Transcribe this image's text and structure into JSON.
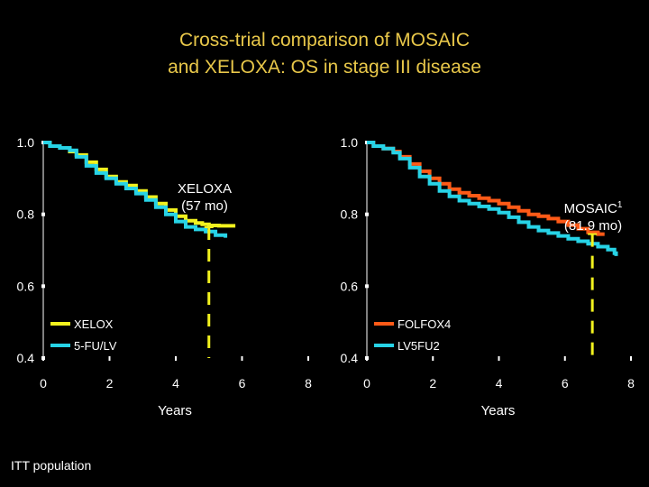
{
  "title": {
    "line1": "Cross-trial comparison of MOSAIC",
    "line2": "and XELOXA: OS in stage III disease"
  },
  "footnote": "ITT population",
  "colors": {
    "background": "#000000",
    "title": "#e9c84a",
    "xelox": "#f2f21e",
    "fu_lv": "#27d3e6",
    "folfox4": "#ff5a17",
    "lv5fu2": "#27d3e6",
    "marker": "#f2f21e",
    "axis": "#ffffff"
  },
  "chart_data": [
    {
      "type": "line",
      "name": "XELOXA",
      "xlabel": "Years",
      "ylabel": "",
      "xlim": [
        0,
        8
      ],
      "ylim": [
        0.4,
        1.0
      ],
      "x_ticks": [
        "0",
        "2",
        "4",
        "6",
        "8"
      ],
      "y_ticks": [
        "1.0",
        "0.8",
        "0.6",
        "0.4"
      ],
      "annotation": {
        "line1": "XELOXA",
        "line2": "(57 mo)",
        "sup": "",
        "x": 5.0
      },
      "legend": [
        "XELOX",
        "5-FU/LV"
      ],
      "series": [
        {
          "name": "XELOX",
          "color": "#f2f21e",
          "x": [
            0,
            0.2,
            0.5,
            0.8,
            1.0,
            1.3,
            1.6,
            1.9,
            2.2,
            2.5,
            2.8,
            3.1,
            3.4,
            3.7,
            4.0,
            4.3,
            4.6,
            4.8,
            5.0,
            5.3,
            5.8
          ],
          "y": [
            1.0,
            0.99,
            0.985,
            0.975,
            0.965,
            0.945,
            0.925,
            0.905,
            0.89,
            0.88,
            0.865,
            0.848,
            0.83,
            0.812,
            0.795,
            0.782,
            0.776,
            0.772,
            0.769,
            0.768,
            0.768
          ]
        },
        {
          "name": "5-FU/LV",
          "color": "#27d3e6",
          "x": [
            0,
            0.2,
            0.5,
            0.8,
            1.0,
            1.3,
            1.6,
            1.9,
            2.2,
            2.5,
            2.8,
            3.1,
            3.4,
            3.7,
            4.0,
            4.3,
            4.6,
            4.9,
            5.2,
            5.5
          ],
          "y": [
            1.0,
            0.99,
            0.985,
            0.978,
            0.96,
            0.935,
            0.915,
            0.9,
            0.885,
            0.872,
            0.858,
            0.84,
            0.82,
            0.8,
            0.78,
            0.765,
            0.758,
            0.752,
            0.742,
            0.735
          ]
        }
      ]
    },
    {
      "type": "line",
      "name": "MOSAIC",
      "xlabel": "Years",
      "ylabel": "",
      "xlim": [
        0,
        8
      ],
      "ylim": [
        0.4,
        1.0
      ],
      "x_ticks": [
        "0",
        "2",
        "4",
        "6",
        "8"
      ],
      "y_ticks": [
        "1.0",
        "0.8",
        "0.6",
        "0.4"
      ],
      "annotation": {
        "line1": "MOSAIC",
        "line2": "(81.9 mo)",
        "sup": "1",
        "x": 6.83
      },
      "legend": [
        "FOLFOX4",
        "LV5FU2"
      ],
      "series": [
        {
          "name": "FOLFOX4",
          "color": "#ff5a17",
          "x": [
            0,
            0.2,
            0.5,
            0.8,
            1.0,
            1.3,
            1.6,
            1.9,
            2.2,
            2.5,
            2.8,
            3.1,
            3.4,
            3.7,
            4.0,
            4.3,
            4.6,
            4.9,
            5.2,
            5.5,
            5.8,
            6.1,
            6.4,
            6.7,
            7.0,
            7.2
          ],
          "y": [
            1.0,
            0.99,
            0.983,
            0.975,
            0.96,
            0.94,
            0.92,
            0.9,
            0.885,
            0.87,
            0.86,
            0.852,
            0.845,
            0.838,
            0.83,
            0.82,
            0.81,
            0.8,
            0.795,
            0.788,
            0.78,
            0.77,
            0.76,
            0.75,
            0.745,
            0.745
          ]
        },
        {
          "name": "LV5FU2",
          "color": "#27d3e6",
          "x": [
            0,
            0.2,
            0.5,
            0.8,
            1.0,
            1.3,
            1.6,
            1.9,
            2.2,
            2.5,
            2.8,
            3.1,
            3.4,
            3.7,
            4.0,
            4.3,
            4.6,
            4.9,
            5.2,
            5.5,
            5.8,
            6.1,
            6.4,
            6.7,
            7.0,
            7.3,
            7.5,
            7.55
          ],
          "y": [
            1.0,
            0.99,
            0.983,
            0.972,
            0.955,
            0.93,
            0.905,
            0.885,
            0.865,
            0.85,
            0.838,
            0.83,
            0.822,
            0.815,
            0.805,
            0.792,
            0.778,
            0.765,
            0.755,
            0.748,
            0.74,
            0.732,
            0.725,
            0.718,
            0.71,
            0.702,
            0.692,
            0.684
          ]
        }
      ]
    }
  ]
}
